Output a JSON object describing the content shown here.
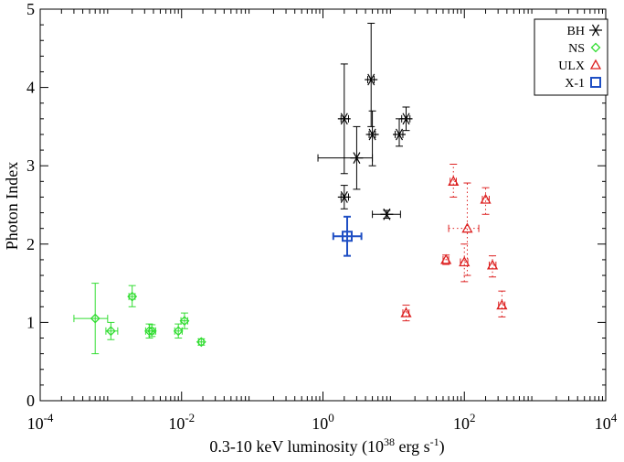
{
  "chart_data": {
    "type": "scatter",
    "title": "",
    "xlabel": "0.3-10 keV luminosity (10",
    "xlabel_sup": "38",
    "xlabel_rest": " erg s",
    "xlabel_sup2": "-1",
    "xlabel_close": ")",
    "ylabel": "Photon Index",
    "x_scale": "log",
    "xlim": [
      0.0001,
      10000
    ],
    "ylim": [
      0,
      5
    ],
    "x_ticks": [
      {
        "value": 0.0001,
        "base": "10",
        "exp": "-4"
      },
      {
        "value": 0.01,
        "base": "10",
        "exp": "-2"
      },
      {
        "value": 1,
        "base": "10",
        "exp": "0"
      },
      {
        "value": 100,
        "base": "10",
        "exp": "2"
      },
      {
        "value": 10000,
        "base": "10",
        "exp": "4"
      }
    ],
    "y_ticks": [
      "0",
      "1",
      "2",
      "3",
      "4",
      "5"
    ],
    "legend_position": "top-right",
    "series": [
      {
        "name": "BH",
        "marker": "asterisk",
        "color": "#000000",
        "error_style": "solid",
        "points": [
          {
            "x": 2.0,
            "y": 3.6,
            "xlo": 1.8,
            "xhi": 2.3,
            "ylo": 2.9,
            "yhi": 4.3
          },
          {
            "x": 3.0,
            "y": 3.1,
            "xlo": 0.85,
            "xhi": 5.0,
            "ylo": 2.7,
            "yhi": 3.5
          },
          {
            "x": 4.8,
            "y": 4.1,
            "xlo": 4.3,
            "xhi": 5.3,
            "ylo": 3.5,
            "yhi": 4.82
          },
          {
            "x": 5.0,
            "y": 3.4,
            "xlo": 4.5,
            "xhi": 5.5,
            "ylo": 3.0,
            "yhi": 3.7
          },
          {
            "x": 12.0,
            "y": 3.4,
            "xlo": 10.5,
            "xhi": 13.5,
            "ylo": 3.25,
            "yhi": 3.6
          },
          {
            "x": 15.0,
            "y": 3.6,
            "xlo": 13.0,
            "xhi": 17.0,
            "ylo": 3.45,
            "yhi": 3.75
          },
          {
            "x": 2.0,
            "y": 2.6,
            "xlo": 1.8,
            "xhi": 2.3,
            "ylo": 2.45,
            "yhi": 2.75
          },
          {
            "x": 8.0,
            "y": 2.38,
            "xlo": 5.0,
            "xhi": 12.5,
            "ylo": 2.33,
            "yhi": 2.43
          }
        ]
      },
      {
        "name": "NS",
        "marker": "diamond",
        "color": "#33dd33",
        "error_style": "solid",
        "points": [
          {
            "x": 0.0006,
            "y": 1.05,
            "xlo": 0.0003,
            "xhi": 0.0009,
            "ylo": 0.6,
            "yhi": 1.5
          },
          {
            "x": 0.001,
            "y": 0.89,
            "xlo": 0.00085,
            "xhi": 0.00125,
            "ylo": 0.78,
            "yhi": 1.0
          },
          {
            "x": 0.002,
            "y": 1.33,
            "xlo": 0.0018,
            "xhi": 0.0022,
            "ylo": 1.2,
            "yhi": 1.47
          },
          {
            "x": 0.0035,
            "y": 0.89,
            "xlo": 0.0031,
            "xhi": 0.0041,
            "ylo": 0.8,
            "yhi": 0.98
          },
          {
            "x": 0.0038,
            "y": 0.89,
            "xlo": 0.0035,
            "xhi": 0.0043,
            "ylo": 0.82,
            "yhi": 0.97
          },
          {
            "x": 0.009,
            "y": 0.89,
            "xlo": 0.008,
            "xhi": 0.0102,
            "ylo": 0.8,
            "yhi": 0.98
          },
          {
            "x": 0.011,
            "y": 1.02,
            "xlo": 0.0098,
            "xhi": 0.0122,
            "ylo": 0.92,
            "yhi": 1.12
          },
          {
            "x": 0.019,
            "y": 0.75,
            "xlo": 0.0175,
            "xhi": 0.0205,
            "ylo": 0.71,
            "yhi": 0.79
          }
        ]
      },
      {
        "name": "ULX",
        "marker": "triangle",
        "color": "#dd2222",
        "error_style": "dotted",
        "points": [
          {
            "x": 15.0,
            "y": 1.12,
            "xlo": 13.5,
            "xhi": 16.5,
            "ylo": 1.02,
            "yhi": 1.22
          },
          {
            "x": 55.0,
            "y": 1.8,
            "xlo": 50.0,
            "xhi": 60.0,
            "ylo": 1.74,
            "yhi": 1.86
          },
          {
            "x": 70.0,
            "y": 2.8,
            "xlo": 63.0,
            "xhi": 77.0,
            "ylo": 2.6,
            "yhi": 3.02
          },
          {
            "x": 100.0,
            "y": 1.77,
            "xlo": 88.0,
            "xhi": 112.0,
            "ylo": 1.52,
            "yhi": 2.0
          },
          {
            "x": 110.0,
            "y": 2.2,
            "xlo": 60.0,
            "xhi": 160.0,
            "ylo": 1.6,
            "yhi": 2.78
          },
          {
            "x": 200.0,
            "y": 2.57,
            "xlo": 180.0,
            "xhi": 225.0,
            "ylo": 2.38,
            "yhi": 2.72
          },
          {
            "x": 250.0,
            "y": 1.73,
            "xlo": 225.0,
            "xhi": 280.0,
            "ylo": 1.58,
            "yhi": 1.85
          },
          {
            "x": 340.0,
            "y": 1.22,
            "xlo": 305.0,
            "xhi": 375.0,
            "ylo": 1.07,
            "yhi": 1.4
          }
        ]
      },
      {
        "name": "X-1",
        "marker": "square",
        "color": "#1f4fc4",
        "error_style": "solid",
        "points": [
          {
            "x": 2.2,
            "y": 2.1,
            "xlo": 1.4,
            "xhi": 3.5,
            "ylo": 1.85,
            "yhi": 2.35
          }
        ]
      }
    ]
  }
}
